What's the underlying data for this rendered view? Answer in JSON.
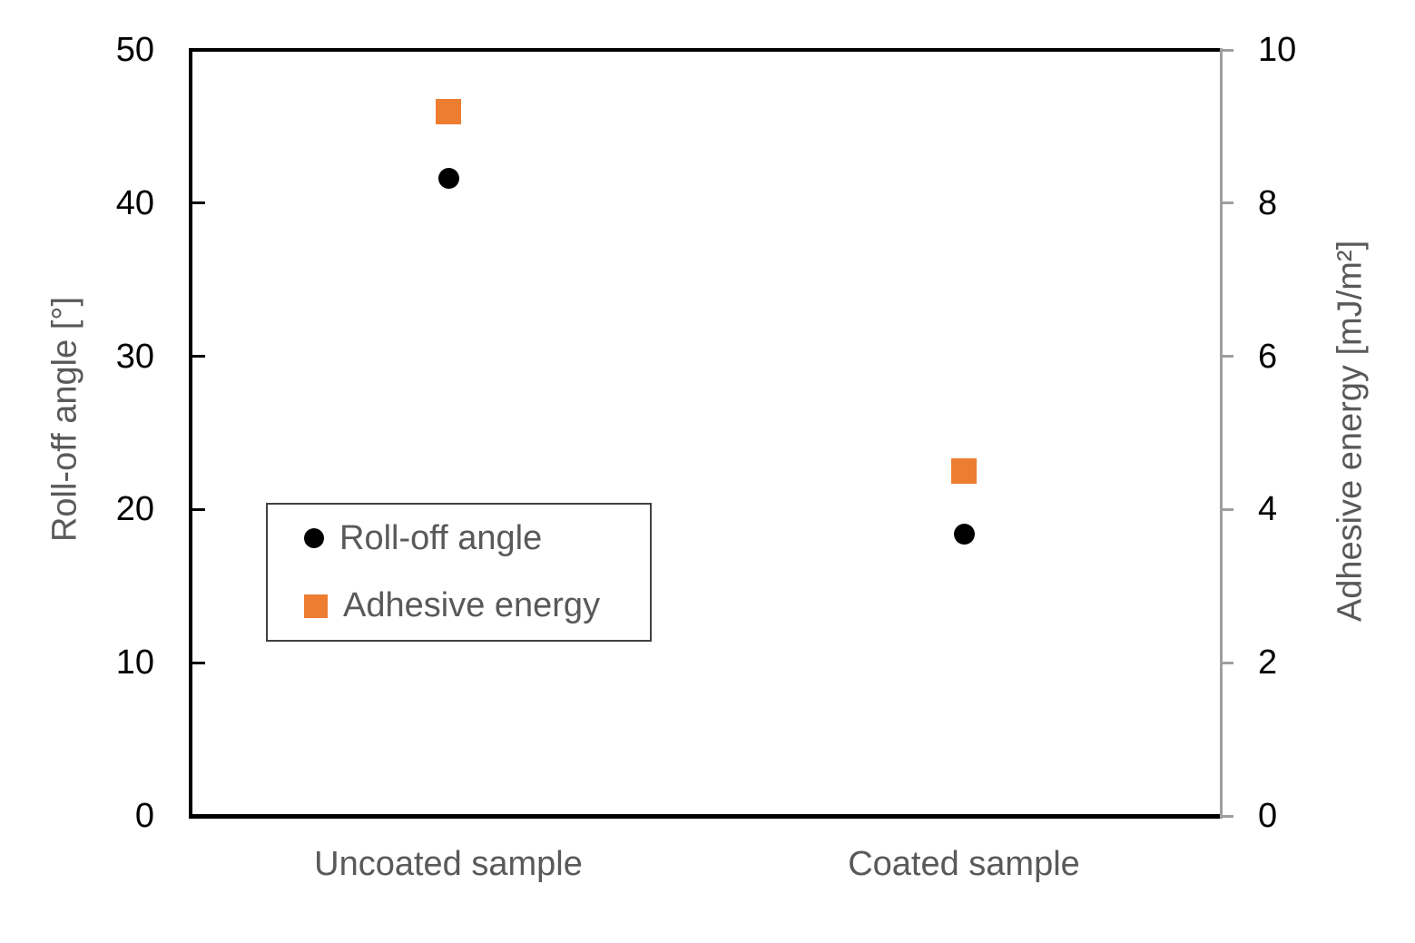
{
  "chart_data": {
    "type": "scatter",
    "title": "",
    "categories": [
      "Uncoated sample",
      "Coated sample"
    ],
    "series": [
      {
        "name": "Roll-off angle",
        "axis": "left",
        "marker": "circle",
        "color": "#000000",
        "values": [
          41.6,
          18.4
        ]
      },
      {
        "name": "Adhesive energy",
        "axis": "right",
        "marker": "square",
        "color": "#ED7D31",
        "values": [
          9.2,
          4.5
        ]
      }
    ],
    "left_axis": {
      "label": "Roll-off angle [°]",
      "min": 0,
      "max": 50,
      "ticks": [
        0,
        10,
        20,
        30,
        40,
        50
      ]
    },
    "right_axis": {
      "label": "Adhesive energy [mJ/m²]",
      "min": 0,
      "max": 10,
      "ticks": [
        0,
        2,
        4,
        6,
        8,
        10
      ]
    },
    "legend": {
      "position": "inside-left",
      "entries": [
        "Roll-off angle",
        "Adhesive energy"
      ]
    },
    "grid": false
  },
  "colors": {
    "accent_orange": "#ED7D31",
    "marker_black": "#000000",
    "text_gray": "#595959",
    "axis_black": "#000000",
    "axis_gray": "#9E9E9E"
  }
}
